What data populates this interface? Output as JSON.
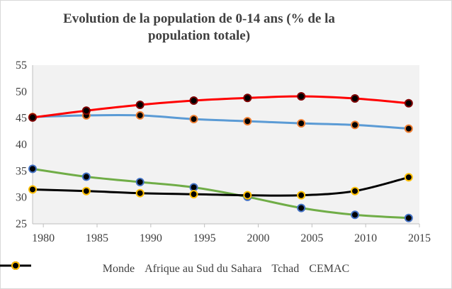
{
  "chart_data": {
    "type": "line",
    "title": "Evolution de la population  de 0-14 ans (% de la population totale)",
    "title_lines": [
      "Evolution de la population  de 0-14 ans (% de la",
      "population totale)"
    ],
    "x": [
      1979,
      1984,
      1989,
      1994,
      1999,
      2004,
      2009,
      2014
    ],
    "xlim": [
      1979,
      2015
    ],
    "x_ticks": [
      1980,
      1985,
      1990,
      1995,
      2000,
      2005,
      2010,
      2015
    ],
    "ylim": [
      25,
      55
    ],
    "y_ticks": [
      25,
      30,
      35,
      40,
      45,
      50,
      55
    ],
    "grid": false,
    "plot_background": "#f2f2f2",
    "legend_position": "bottom",
    "series": [
      {
        "name": "Monde",
        "color": "#70ad47",
        "marker_color": "#4472c4",
        "values": [
          35.4,
          33.9,
          32.9,
          31.9,
          30.1,
          28.0,
          26.7,
          26.1
        ]
      },
      {
        "name": "Afrique au Sud du Sahara",
        "color": "#5b9bd5",
        "marker_color": "#ed7d31",
        "values": [
          45.2,
          45.5,
          45.5,
          44.8,
          44.4,
          44.0,
          43.7,
          43.0
        ]
      },
      {
        "name": "Tchad",
        "color": "#ff0000",
        "marker_color": "#7f0000",
        "values": [
          45.1,
          46.4,
          47.5,
          48.3,
          48.8,
          49.1,
          48.7,
          47.8
        ]
      },
      {
        "name": "CEMAC",
        "color": "#000000",
        "marker_color": "#ffc000",
        "values": [
          31.5,
          31.2,
          30.8,
          30.6,
          30.4,
          30.4,
          31.2,
          33.8
        ]
      }
    ]
  }
}
